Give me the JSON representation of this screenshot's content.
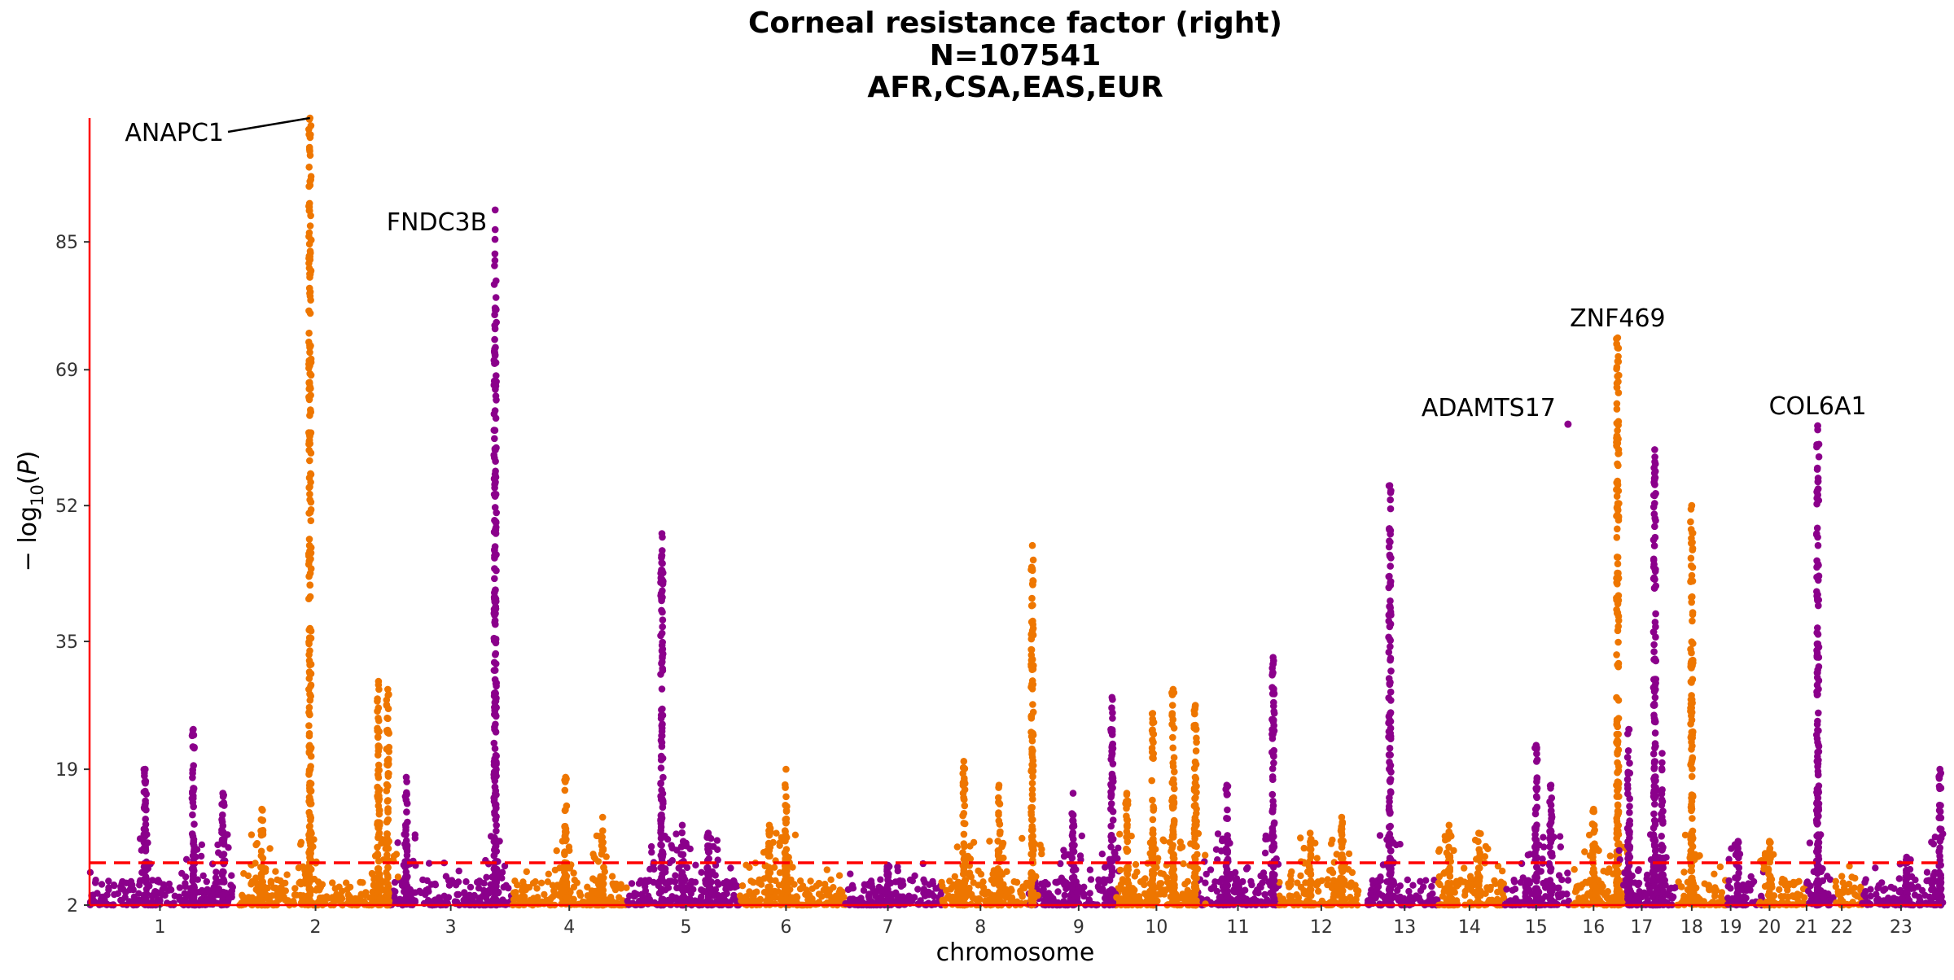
{
  "chart_data": {
    "type": "scatter",
    "subtype": "manhattan",
    "title": [
      "Corneal resistance factor (right)",
      "N=107541",
      "AFR,CSA,EAS,EUR"
    ],
    "xlabel": "chromosome",
    "ylabel_parts": [
      "− log",
      "10",
      "(",
      "P",
      ")"
    ],
    "y_ticks": [
      2,
      19,
      35,
      52,
      69,
      85
    ],
    "ylim": [
      2,
      100.5
    ],
    "significance_threshold": 7.3,
    "threshold_color": "#ff0000",
    "axis_color": "#ff0000",
    "colors": {
      "odd": "#8b008b",
      "even": "#ee7600"
    },
    "chromosomes": [
      {
        "label": "1",
        "start": 0,
        "end": 0.077,
        "tick": 0.038
      },
      {
        "label": "2",
        "start": 0.081,
        "end": 0.162,
        "tick": 0.122
      },
      {
        "label": "3",
        "start": 0.162,
        "end": 0.228,
        "tick": 0.195
      },
      {
        "label": "4",
        "start": 0.228,
        "end": 0.29,
        "tick": 0.259
      },
      {
        "label": "5",
        "start": 0.29,
        "end": 0.351,
        "tick": 0.322
      },
      {
        "label": "6",
        "start": 0.351,
        "end": 0.408,
        "tick": 0.376
      },
      {
        "label": "7",
        "start": 0.408,
        "end": 0.46,
        "tick": 0.431
      },
      {
        "label": "8",
        "start": 0.46,
        "end": 0.507,
        "tick": 0.481
      },
      {
        "label": "9",
        "start": 0.507,
        "end": 0.553,
        "tick": 0.534
      },
      {
        "label": "10",
        "start": 0.553,
        "end": 0.598,
        "tick": 0.576
      },
      {
        "label": "11",
        "start": 0.598,
        "end": 0.642,
        "tick": 0.62
      },
      {
        "label": "12",
        "start": 0.642,
        "end": 0.685,
        "tick": 0.665
      },
      {
        "label": "13",
        "start": 0.69,
        "end": 0.728,
        "tick": 0.71
      },
      {
        "label": "14",
        "start": 0.728,
        "end": 0.764,
        "tick": 0.745
      },
      {
        "label": "15",
        "start": 0.764,
        "end": 0.8,
        "tick": 0.781
      },
      {
        "label": "16",
        "start": 0.8,
        "end": 0.83,
        "tick": 0.812
      },
      {
        "label": "17",
        "start": 0.83,
        "end": 0.857,
        "tick": 0.838
      },
      {
        "label": "18",
        "start": 0.857,
        "end": 0.884,
        "tick": 0.865
      },
      {
        "label": "19",
        "start": 0.884,
        "end": 0.904,
        "tick": 0.886
      },
      {
        "label": "20",
        "start": 0.904,
        "end": 0.927,
        "tick": 0.907
      },
      {
        "label": "21",
        "start": 0.927,
        "end": 0.942,
        "tick": 0.927
      },
      {
        "label": "22",
        "start": 0.942,
        "end": 0.957,
        "tick": 0.946
      },
      {
        "label": "23",
        "start": 0.957,
        "end": 1.0,
        "tick": 0.978
      }
    ],
    "peaks": [
      {
        "chrom": "1",
        "pos": 0.03,
        "max": 19
      },
      {
        "chrom": "1",
        "pos": 0.056,
        "max": 24
      },
      {
        "chrom": "1",
        "pos": 0.072,
        "max": 16
      },
      {
        "chrom": "2",
        "pos": 0.093,
        "max": 14
      },
      {
        "chrom": "2",
        "pos": 0.119,
        "max": 100.5
      },
      {
        "chrom": "2",
        "pos": 0.156,
        "max": 30
      },
      {
        "chrom": "2",
        "pos": 0.161,
        "max": 29
      },
      {
        "chrom": "3",
        "pos": 0.171,
        "max": 18
      },
      {
        "chrom": "3",
        "pos": 0.219,
        "max": 89
      },
      {
        "chrom": "4",
        "pos": 0.257,
        "max": 18
      },
      {
        "chrom": "4",
        "pos": 0.277,
        "max": 13
      },
      {
        "chrom": "5",
        "pos": 0.309,
        "max": 48.5
      },
      {
        "chrom": "5",
        "pos": 0.32,
        "max": 12
      },
      {
        "chrom": "5",
        "pos": 0.334,
        "max": 11
      },
      {
        "chrom": "6",
        "pos": 0.376,
        "max": 19
      },
      {
        "chrom": "6",
        "pos": 0.367,
        "max": 12
      },
      {
        "chrom": "7",
        "pos": 0.431,
        "max": 7
      },
      {
        "chrom": "8",
        "pos": 0.472,
        "max": 20
      },
      {
        "chrom": "8",
        "pos": 0.491,
        "max": 17
      },
      {
        "chrom": "8",
        "pos": 0.509,
        "max": 47
      },
      {
        "chrom": "9",
        "pos": 0.531,
        "max": 16
      },
      {
        "chrom": "9",
        "pos": 0.552,
        "max": 28
      },
      {
        "chrom": "10",
        "pos": 0.56,
        "max": 16
      },
      {
        "chrom": "10",
        "pos": 0.574,
        "max": 26
      },
      {
        "chrom": "10",
        "pos": 0.585,
        "max": 29
      },
      {
        "chrom": "10",
        "pos": 0.597,
        "max": 27
      },
      {
        "chrom": "11",
        "pos": 0.614,
        "max": 17
      },
      {
        "chrom": "11",
        "pos": 0.639,
        "max": 33
      },
      {
        "chrom": "12",
        "pos": 0.659,
        "max": 11
      },
      {
        "chrom": "12",
        "pos": 0.676,
        "max": 13
      },
      {
        "chrom": "13",
        "pos": 0.702,
        "max": 54.5
      },
      {
        "chrom": "14",
        "pos": 0.734,
        "max": 12
      },
      {
        "chrom": "14",
        "pos": 0.75,
        "max": 11
      },
      {
        "chrom": "15",
        "pos": 0.781,
        "max": 22
      },
      {
        "chrom": "15",
        "pos": 0.789,
        "max": 17
      },
      {
        "chrom": "16",
        "pos": 0.812,
        "max": 14
      },
      {
        "chrom": "16",
        "pos": 0.825,
        "max": 73
      },
      {
        "chrom": "17",
        "pos": 0.831,
        "max": 24
      },
      {
        "chrom": "17",
        "pos": 0.845,
        "max": 59
      },
      {
        "chrom": "17",
        "pos": 0.849,
        "max": 21
      },
      {
        "chrom": "18",
        "pos": 0.865,
        "max": 52
      },
      {
        "chrom": "19",
        "pos": 0.89,
        "max": 10
      },
      {
        "chrom": "20",
        "pos": 0.907,
        "max": 10
      },
      {
        "chrom": "21",
        "pos": 0.933,
        "max": 62
      },
      {
        "chrom": "23",
        "pos": 0.981,
        "max": 8
      },
      {
        "chrom": "23",
        "pos": 0.999,
        "max": 19
      }
    ],
    "annotations": [
      {
        "text": "ANAPC1",
        "chrom": "2",
        "pos": 0.119,
        "y": 100.5,
        "leader": true
      },
      {
        "text": "FNDC3B",
        "chrom": "3",
        "pos": 0.219,
        "y": 89
      },
      {
        "text": "ADAMTS17",
        "chrom": "15",
        "pos": 0.796,
        "y": 63
      },
      {
        "text": "ZNF469",
        "chrom": "16",
        "pos": 0.825,
        "y": 73
      },
      {
        "text": "COL6A1",
        "chrom": "21",
        "pos": 0.933,
        "y": 62
      }
    ]
  }
}
